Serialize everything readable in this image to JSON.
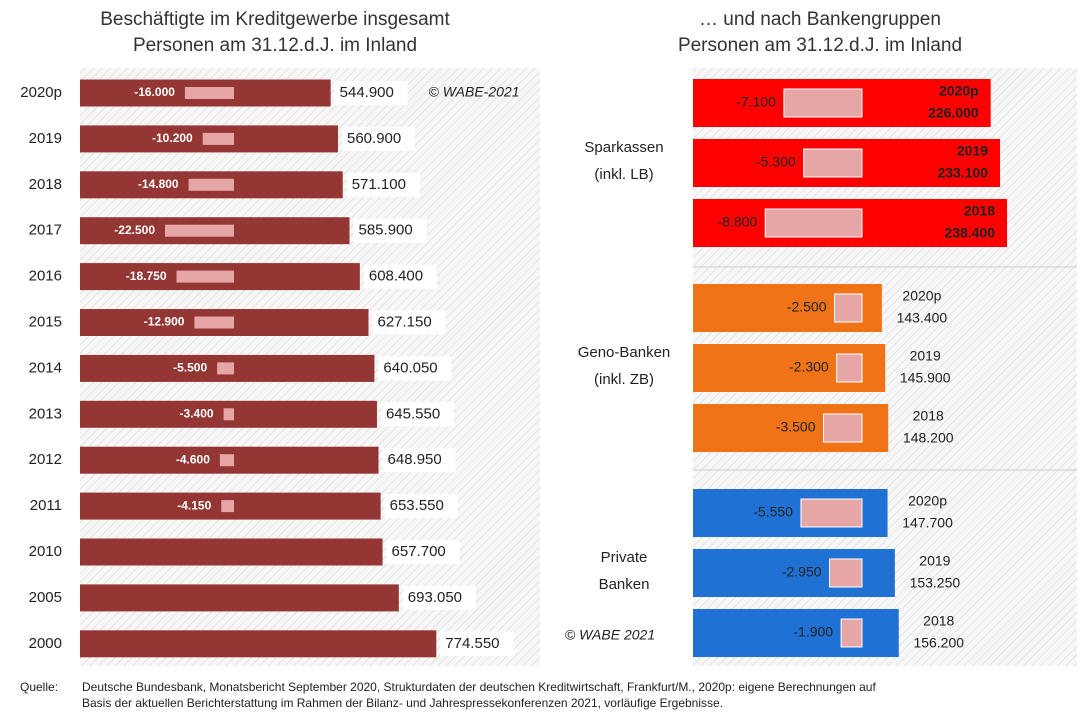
{
  "chart_data": [
    {
      "type": "hbar",
      "title": "Beschäftigte im Kreditgewerbe insgesamt",
      "subtitle": "Personen am 31.12.d.J. im Inland",
      "annotation": "© WABE-2021",
      "color": "#943634",
      "change_color": "#e6a6a6",
      "xlim": [
        0,
        1000000
      ],
      "change_xlim": [
        -30000,
        0
      ],
      "categories": [
        "2020p",
        "2019",
        "2018",
        "2017",
        "2016",
        "2015",
        "2014",
        "2013",
        "2012",
        "2011",
        "2010",
        "2005",
        "2000"
      ],
      "values": [
        544900,
        560900,
        571100,
        585900,
        608400,
        627150,
        640050,
        645550,
        648950,
        653550,
        657700,
        693050,
        774550
      ],
      "value_labels": [
        "544.900",
        "560.900",
        "571.100",
        "585.900",
        "608.400",
        "627.150",
        "640.050",
        "645.550",
        "648.950",
        "653.550",
        "657.700",
        "693.050",
        "774.550"
      ],
      "changes": [
        -16000,
        -10200,
        -14800,
        -22500,
        -18750,
        -12900,
        -5500,
        -3400,
        -4600,
        -4150,
        null,
        null,
        null
      ],
      "change_labels": [
        "-16.000",
        "-10.200",
        "-14.800",
        "-22.500",
        "-18.750",
        "-12.900",
        "-5.500",
        "-3.400",
        "-4.600",
        "-4.150",
        null,
        null,
        null
      ]
    },
    {
      "type": "grouped_hbar",
      "title": "… und nach Bankengruppen",
      "subtitle": "Personen am 31.12.d.J. im Inland",
      "annotation": "© WABE 2021",
      "change_color": "#e6a6a6",
      "xlim": [
        0,
        290000
      ],
      "change_xlim": [
        -10000,
        0
      ],
      "groups": [
        {
          "label": [
            "Sparkassen",
            "(inkl. LB)"
          ],
          "color": "#ff0000",
          "categories": [
            "2020p",
            "2019",
            "2018"
          ],
          "values": [
            226000,
            233100,
            238400
          ],
          "value_labels": [
            "226.000",
            "233.100",
            "238.400"
          ],
          "changes": [
            -7100,
            -5300,
            -8800
          ],
          "change_labels": [
            "-7.100",
            "-5.300",
            "-8.800"
          ]
        },
        {
          "label": [
            "Geno-Banken",
            "(inkl. ZB)"
          ],
          "color": "#f07417",
          "categories": [
            "2020p",
            "2019",
            "2018"
          ],
          "values": [
            143400,
            145900,
            148200
          ],
          "value_labels": [
            "143.400",
            "145.900",
            "148.200"
          ],
          "changes": [
            -2500,
            -2300,
            -3500
          ],
          "change_labels": [
            "-2.500",
            "-2.300",
            "-3.500"
          ]
        },
        {
          "label": [
            "Private",
            "Banken"
          ],
          "color": "#1f72d3",
          "categories": [
            "2020p",
            "2019",
            "2018"
          ],
          "values": [
            147700,
            153250,
            156200
          ],
          "value_labels": [
            "147.700",
            "153.250",
            "156.200"
          ],
          "changes": [
            -5550,
            -2950,
            -1900
          ],
          "change_labels": [
            "-5.550",
            "-2.950",
            "-1.900"
          ]
        }
      ]
    }
  ],
  "source_label": "Quelle:",
  "source": [
    "Deutsche Bundesbank, Monatsbericht September 2020, Strukturdaten der deutschen Kreditwirtschaft, Frankfurt/M.,  2020p: eigene Berechnungen auf",
    "Basis der aktuellen Berichterstattung im Rahmen der Bilanz- und Jahrespressekonferenzen 2021, vorläufige Ergebnisse."
  ]
}
